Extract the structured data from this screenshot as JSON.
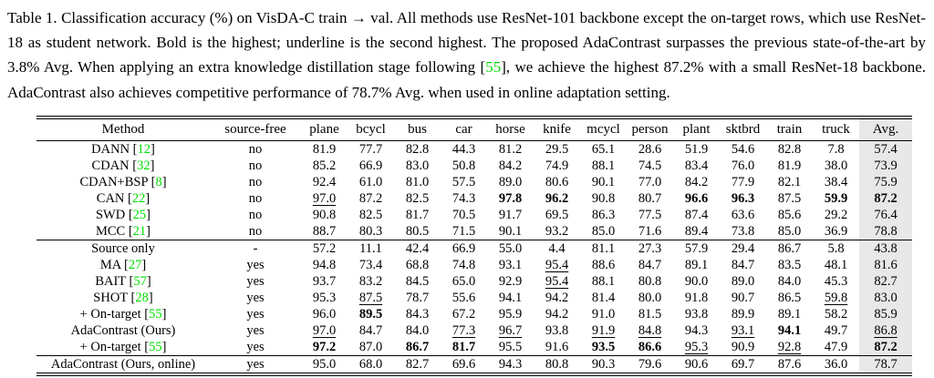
{
  "colors": {
    "citation_green": "#00dd00",
    "avg_column_bg": "#e8e8e8"
  },
  "caption": {
    "before_cite": "Table 1. Classification accuracy (%) on VisDA-C train → val. All methods use ResNet-101 backbone except the on-target rows, which use ResNet-18 as student network. Bold is the highest; underline is the second highest. The proposed AdaContrast surpasses the previous state-of-the-art by 3.8% Avg. When applying an extra knowledge distillation stage following [",
    "cite": "55",
    "after_cite": "], we achieve the highest 87.2% with a small ResNet-18 backbone. AdaContrast also achieves competitive performance of 78.7% Avg. when used in online adaptation setting."
  },
  "table": {
    "columns": [
      "Method",
      "source-free",
      "plane",
      "bcycl",
      "bus",
      "car",
      "horse",
      "knife",
      "mcycl",
      "person",
      "plant",
      "sktbrd",
      "train",
      "truck",
      "Avg."
    ],
    "groups": [
      {
        "rows": [
          {
            "name": "DANN",
            "cite": "12",
            "source_free": "no",
            "cells": [
              "81.9",
              "77.7",
              "82.8",
              "44.3",
              "81.2",
              "29.5",
              "65.1",
              "28.6",
              "51.9",
              "54.6",
              "82.8",
              "7.8",
              "57.4"
            ],
            "bold": [],
            "underline": []
          },
          {
            "name": "CDAN",
            "cite": "32",
            "source_free": "no",
            "cells": [
              "85.2",
              "66.9",
              "83.0",
              "50.8",
              "84.2",
              "74.9",
              "88.1",
              "74.5",
              "83.4",
              "76.0",
              "81.9",
              "38.0",
              "73.9"
            ],
            "bold": [],
            "underline": []
          },
          {
            "name": "CDAN+BSP",
            "cite": "8",
            "source_free": "no",
            "cells": [
              "92.4",
              "61.0",
              "81.0",
              "57.5",
              "89.0",
              "80.6",
              "90.1",
              "77.0",
              "84.2",
              "77.9",
              "82.1",
              "38.4",
              "75.9"
            ],
            "bold": [],
            "underline": []
          },
          {
            "name": "CAN",
            "cite": "22",
            "source_free": "no",
            "cells": [
              "97.0",
              "87.2",
              "82.5",
              "74.3",
              "97.8",
              "96.2",
              "90.8",
              "80.7",
              "96.6",
              "96.3",
              "87.5",
              "59.9",
              "87.2"
            ],
            "bold": [
              4,
              5,
              8,
              9,
              11,
              12
            ],
            "underline": [
              0
            ]
          },
          {
            "name": "SWD",
            "cite": "25",
            "source_free": "no",
            "cells": [
              "90.8",
              "82.5",
              "81.7",
              "70.5",
              "91.7",
              "69.5",
              "86.3",
              "77.5",
              "87.4",
              "63.6",
              "85.6",
              "29.2",
              "76.4"
            ],
            "bold": [],
            "underline": []
          },
          {
            "name": "MCC",
            "cite": "21",
            "source_free": "no",
            "cells": [
              "88.7",
              "80.3",
              "80.5",
              "71.5",
              "90.1",
              "93.2",
              "85.0",
              "71.6",
              "89.4",
              "73.8",
              "85.0",
              "36.9",
              "78.8"
            ],
            "bold": [],
            "underline": []
          }
        ]
      },
      {
        "rows": [
          {
            "name": "Source only",
            "cite": "",
            "source_free": "-",
            "cells": [
              "57.2",
              "11.1",
              "42.4",
              "66.9",
              "55.0",
              "4.4",
              "81.1",
              "27.3",
              "57.9",
              "29.4",
              "86.7",
              "5.8",
              "43.8"
            ],
            "bold": [],
            "underline": []
          },
          {
            "name": "MA",
            "cite": "27",
            "source_free": "yes",
            "cells": [
              "94.8",
              "73.4",
              "68.8",
              "74.8",
              "93.1",
              "95.4",
              "88.6",
              "84.7",
              "89.1",
              "84.7",
              "83.5",
              "48.1",
              "81.6"
            ],
            "bold": [],
            "underline": [
              5
            ]
          },
          {
            "name": "BAIT",
            "cite": "57",
            "source_free": "yes",
            "cells": [
              "93.7",
              "83.2",
              "84.5",
              "65.0",
              "92.9",
              "95.4",
              "88.1",
              "80.8",
              "90.0",
              "89.0",
              "84.0",
              "45.3",
              "82.7"
            ],
            "bold": [],
            "underline": [
              5
            ]
          },
          {
            "name": "SHOT",
            "cite": "28",
            "source_free": "yes",
            "cells": [
              "95.3",
              "87.5",
              "78.7",
              "55.6",
              "94.1",
              "94.2",
              "81.4",
              "80.0",
              "91.8",
              "90.7",
              "86.5",
              "59.8",
              "83.0"
            ],
            "bold": [],
            "underline": [
              1,
              11
            ]
          },
          {
            "name": "+ On-target",
            "cite": "55",
            "source_free": "yes",
            "cells": [
              "96.0",
              "89.5",
              "84.3",
              "67.2",
              "95.9",
              "94.2",
              "91.0",
              "81.5",
              "93.8",
              "89.9",
              "89.1",
              "58.2",
              "85.9"
            ],
            "bold": [
              1
            ],
            "underline": []
          },
          {
            "name": "AdaContrast (Ours)",
            "cite": "",
            "source_free": "yes",
            "cells": [
              "97.0",
              "84.7",
              "84.0",
              "77.3",
              "96.7",
              "93.8",
              "91.9",
              "84.8",
              "94.3",
              "93.1",
              "94.1",
              "49.7",
              "86.8"
            ],
            "bold": [
              10
            ],
            "underline": [
              0,
              3,
              4,
              6,
              7,
              9,
              12
            ]
          },
          {
            "name": "+ On-target",
            "cite": "55",
            "source_free": "yes",
            "cells": [
              "97.2",
              "87.0",
              "86.7",
              "81.7",
              "95.5",
              "91.6",
              "93.5",
              "86.6",
              "95.3",
              "90.9",
              "92.8",
              "47.9",
              "87.2"
            ],
            "bold": [
              0,
              2,
              3,
              6,
              7,
              12
            ],
            "underline": [
              8,
              10
            ]
          }
        ]
      },
      {
        "rows": [
          {
            "name": "AdaContrast (Ours, online)",
            "cite": "",
            "source_free": "yes",
            "cells": [
              "95.0",
              "68.0",
              "82.7",
              "69.6",
              "94.3",
              "80.8",
              "90.3",
              "79.6",
              "90.6",
              "69.7",
              "87.6",
              "36.0",
              "78.7"
            ],
            "bold": [],
            "underline": []
          }
        ]
      }
    ]
  }
}
